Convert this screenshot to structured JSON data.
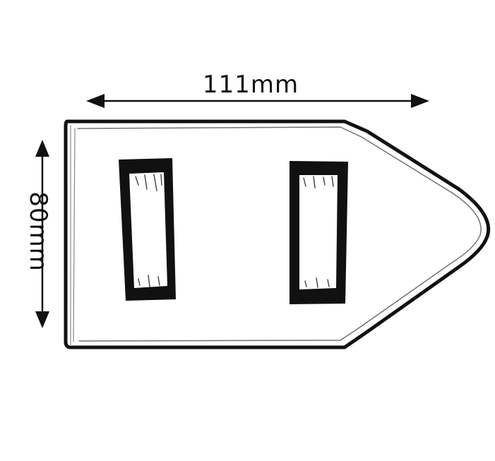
{
  "dimensions": {
    "width_label": "111mm",
    "height_label": "80mm"
  },
  "colors": {
    "ink": "#111111",
    "paper": "#ffffff"
  }
}
